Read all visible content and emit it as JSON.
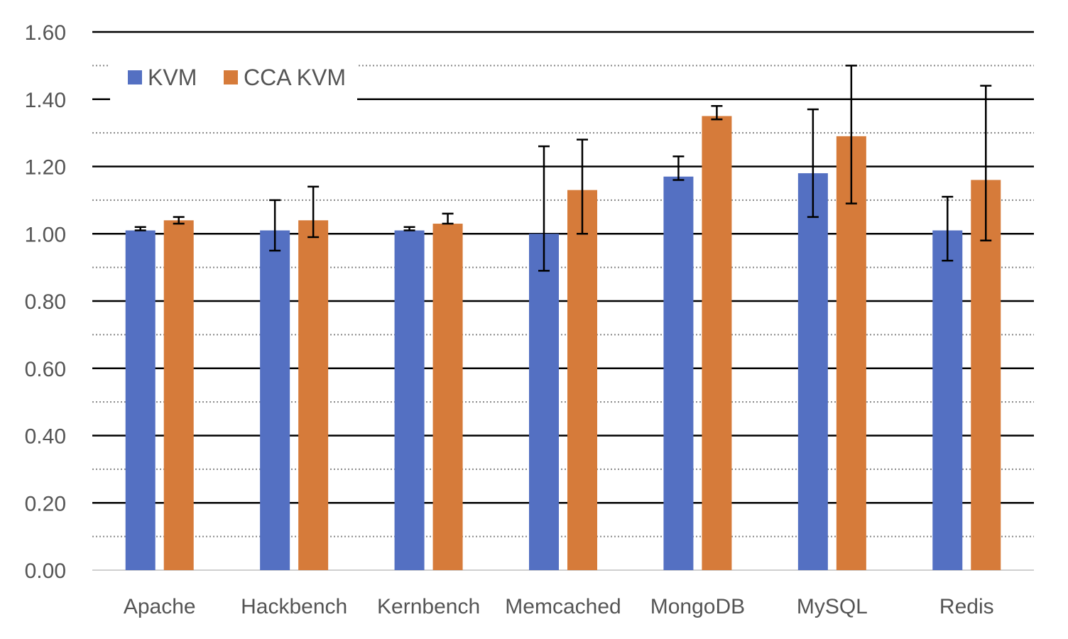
{
  "chart_data": {
    "type": "bar",
    "categories": [
      "Apache",
      "Hackbench",
      "Kernbench",
      "Memcached",
      "MongoDB",
      "MySQL",
      "Redis"
    ],
    "series": [
      {
        "name": "KVM",
        "color": "#5470C2",
        "values": [
          1.01,
          1.01,
          1.01,
          1.0,
          1.17,
          1.18,
          1.01
        ],
        "error_low": [
          1.01,
          0.95,
          1.01,
          0.89,
          1.16,
          1.05,
          0.92
        ],
        "error_high": [
          1.02,
          1.1,
          1.02,
          1.26,
          1.23,
          1.37,
          1.11
        ]
      },
      {
        "name": "CCA KVM",
        "color": "#D67B3A",
        "values": [
          1.04,
          1.04,
          1.03,
          1.13,
          1.35,
          1.29,
          1.16
        ],
        "error_low": [
          1.03,
          0.99,
          1.03,
          1.0,
          1.34,
          1.09,
          0.98
        ],
        "error_high": [
          1.05,
          1.14,
          1.06,
          1.28,
          1.38,
          1.5,
          1.44
        ]
      }
    ],
    "yticks": [
      "0.00",
      "0.20",
      "0.40",
      "0.60",
      "0.80",
      "1.00",
      "1.20",
      "1.40",
      "1.60"
    ],
    "ylim": [
      0,
      1.6
    ],
    "grid": {
      "major_step": 0.2,
      "minor_step": 0.1,
      "major_style": "solid",
      "minor_style": "dotted"
    },
    "legend": {
      "placement": "top-left"
    }
  }
}
